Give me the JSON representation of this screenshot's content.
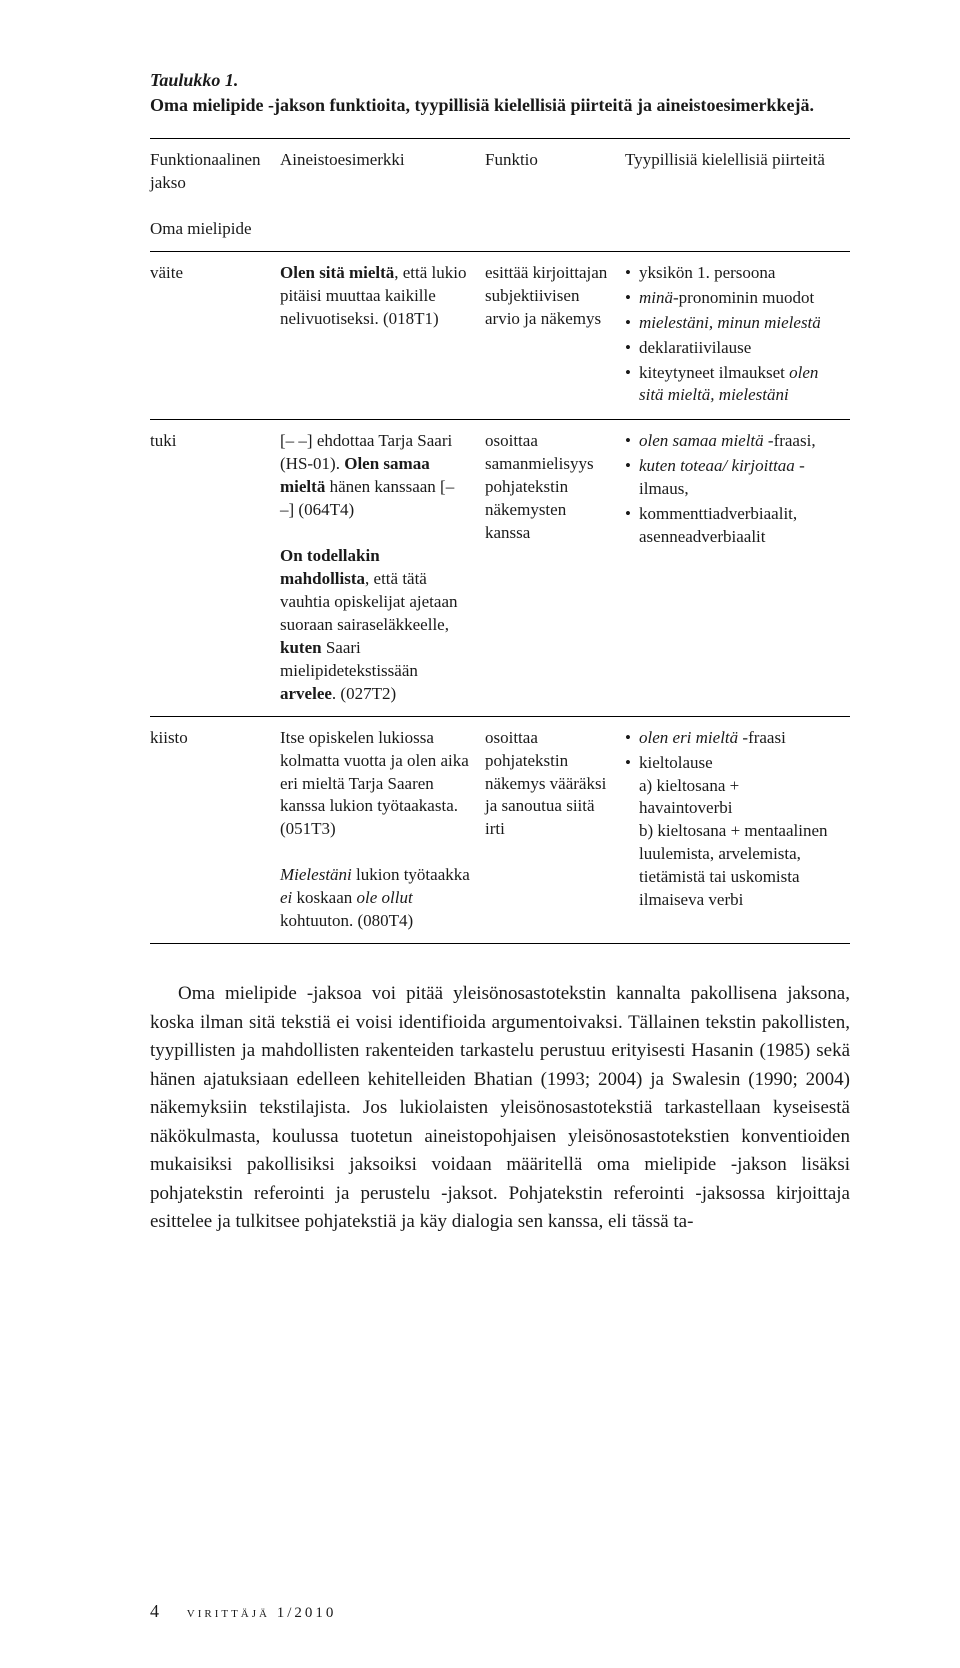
{
  "caption": "Taulukko 1.",
  "subtitle": "Oma mielipide -jakson funktioita, tyypillisiä kielellisiä piirteitä ja aineistoesimerkkejä.",
  "headers": {
    "col1a": "Funktionaalinen jakso",
    "col1b": "Oma mielipide",
    "col2": "Aineistoesimerkki",
    "col3": "Funktio",
    "col4": "Tyypillisiä kielellisiä piirteitä"
  },
  "rows": {
    "vaite": {
      "label": "väite",
      "example_html": "<b>Olen sitä mieltä</b>, että lukio pitäisi muuttaa kaikille nelivuotiseksi. (018T1)",
      "funktio": "esittää kirjoittajan subjektiivisen arvio ja näkemys",
      "features": [
        "yksikön 1. persoona",
        "<i>minä</i>-pronominin muodot",
        "<i>mielestäni, minun mielestä</i>",
        "deklaratiivilause",
        "kiteytyneet ilmaukset <i>olen sitä mieltä, mielestäni</i>"
      ]
    },
    "tuki": {
      "label": "tuki",
      "example_html": "[– –] ehdottaa Tarja Saari (HS-01). <b>Olen samaa mieltä</b> hänen kanssaan [– –] (064T4)<br><br><b>On todellakin mahdollista</b>, että tätä vauhtia opiskelijat ajetaan suoraan sairaseläkkeelle, <b>kuten</b> Saari mielipidetekstissään <b>arvelee</b>. (027T2)",
      "funktio": "osoittaa samanmielisyys pohjatekstin näkemysten kanssa",
      "features": [
        "<i>olen samaa mieltä</i> -fraasi,",
        "<i>kuten toteaa/ kirjoittaa</i> -ilmaus,",
        "kommenttiadverbiaalit, asenneadverbiaalit"
      ]
    },
    "kiisto": {
      "label": "kiisto",
      "example_html": "Itse opiskelen lukiossa kolmatta vuotta ja olen aika eri mieltä Tarja Saaren kanssa lukion työtaakasta. (051T3)<br><br><i>Mielestäni</i> lukion työtaakka <i>ei</i> koskaan <i>ole ollut</i> kohtuuton. (080T4)",
      "funktio": "osoittaa pohjatekstin näkemys vääräksi ja sanoutua siitä irti",
      "features": [
        "<i>olen eri mieltä</i> -fraasi",
        "kieltolause<br>a) kieltosana + havaintoverbi<br>b) kieltosana + mentaalinen luulemista, arvelemista, tietämistä tai uskomista ilmaiseva verbi"
      ]
    }
  },
  "body_paragraph": "Oma mielipide -jaksoa voi pitää yleisönosastotekstin kannalta pakollisena jaksona, koska ilman sitä tekstiä ei voisi identifioida argumentoivaksi. Tällainen tekstin pakollisten, tyypillisten ja mahdollisten rakenteiden tarkastelu perustuu erityisesti Hasanin (1985) sekä hänen ajatuksiaan edelleen kehitelleiden Bhatian (1993; 2004) ja Swalesin (1990; 2004) näkemyksiin tekstilajista. Jos lukiolaisten yleisönosastotekstiä tarkastellaan kyseisestä näkökulmasta, koulussa tuotetun aineistopohjaisen yleisönosastotekstien konventioiden mukaisiksi pakollisiksi jaksoiksi voidaan määritellä oma mielipide -jakson lisäksi pohjatekstin referointi ja perustelu -jaksot. Pohjatekstin referointi -jaksossa kirjoittaja esittelee ja tulkitsee pohjatekstiä ja käy dialogia sen kanssa, eli tässä ta-",
  "footer": {
    "page": "4",
    "journal": "virittäjä 1/2010"
  }
}
